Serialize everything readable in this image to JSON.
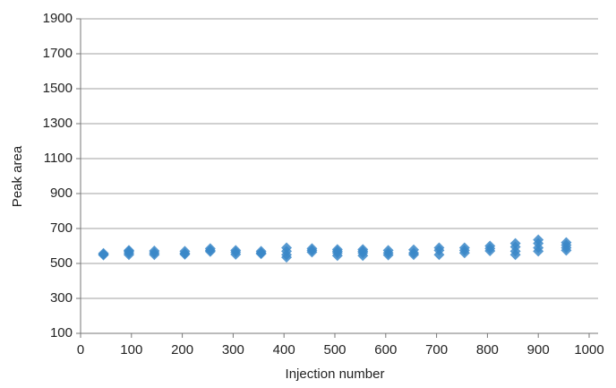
{
  "chart_data": {
    "type": "scatter",
    "x_label": "Injection number",
    "y_label": "Peak area",
    "xlim": [
      0,
      1000
    ],
    "xticks": [
      0,
      100,
      200,
      300,
      400,
      500,
      600,
      700,
      800,
      900,
      1000
    ],
    "ylim": [
      100,
      1900
    ],
    "yticks": [
      100,
      300,
      500,
      700,
      900,
      1100,
      1300,
      1500,
      1700,
      1900
    ],
    "grid": true,
    "series": [
      {
        "color": "#3a87c8",
        "x": [
          45,
          45,
          45,
          95,
          95,
          95,
          95,
          145,
          145,
          145,
          205,
          205,
          205,
          255,
          255,
          255,
          305,
          305,
          305,
          355,
          355,
          355,
          405,
          405,
          405,
          405,
          455,
          455,
          455,
          505,
          505,
          505,
          505,
          555,
          555,
          555,
          555,
          605,
          605,
          605,
          655,
          655,
          655,
          705,
          705,
          705,
          755,
          755,
          755,
          805,
          805,
          805,
          855,
          855,
          855,
          855,
          900,
          900,
          900,
          900,
          955,
          955,
          955,
          955
        ],
        "values": [
          552,
          558,
          548,
          560,
          570,
          550,
          575,
          560,
          572,
          550,
          558,
          570,
          552,
          575,
          585,
          568,
          565,
          575,
          552,
          560,
          570,
          555,
          590,
          570,
          550,
          535,
          575,
          565,
          585,
          580,
          560,
          545,
          570,
          580,
          560,
          545,
          570,
          575,
          560,
          548,
          578,
          560,
          550,
          590,
          575,
          550,
          590,
          575,
          560,
          600,
          585,
          572,
          615,
          595,
          570,
          550,
          635,
          615,
          590,
          570,
          620,
          605,
          590,
          575
        ]
      }
    ]
  }
}
